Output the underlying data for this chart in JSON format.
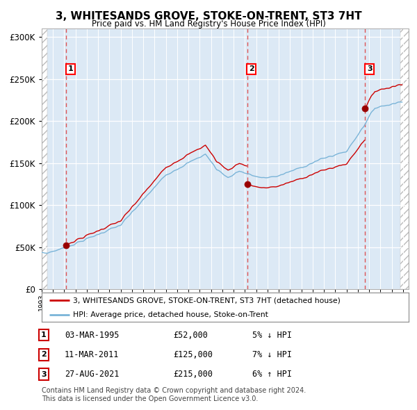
{
  "title": "3, WHITESANDS GROVE, STOKE-ON-TRENT, ST3 7HT",
  "subtitle": "Price paid vs. HM Land Registry's House Price Index (HPI)",
  "legend_line1": "3, WHITESANDS GROVE, STOKE-ON-TRENT, ST3 7HT (detached house)",
  "legend_line2": "HPI: Average price, detached house, Stoke-on-Trent",
  "transactions": [
    {
      "num": 1,
      "date": "03-MAR-1995",
      "year": 1995.17,
      "price": 52000,
      "pct": "5%",
      "dir": "↓",
      "label": "5% ↓ HPI"
    },
    {
      "num": 2,
      "date": "11-MAR-2011",
      "year": 2011.19,
      "price": 125000,
      "pct": "7%",
      "dir": "↓",
      "label": "7% ↓ HPI"
    },
    {
      "num": 3,
      "date": "27-AUG-2021",
      "year": 2021.65,
      "price": 215000,
      "pct": "6%",
      "dir": "↑",
      "label": "6% ↑ HPI"
    }
  ],
  "footer1": "Contains HM Land Registry data © Crown copyright and database right 2024.",
  "footer2": "This data is licensed under the Open Government Licence v3.0.",
  "hpi_color": "#7ab4d8",
  "price_color": "#cc0000",
  "marker_color": "#990000",
  "vline_color": "#dd4444",
  "background_color": "#dce9f5",
  "ylim": [
    0,
    310000
  ],
  "xlim_start": 1993.0,
  "xlim_end": 2025.5,
  "hatch_end": 2024.75
}
